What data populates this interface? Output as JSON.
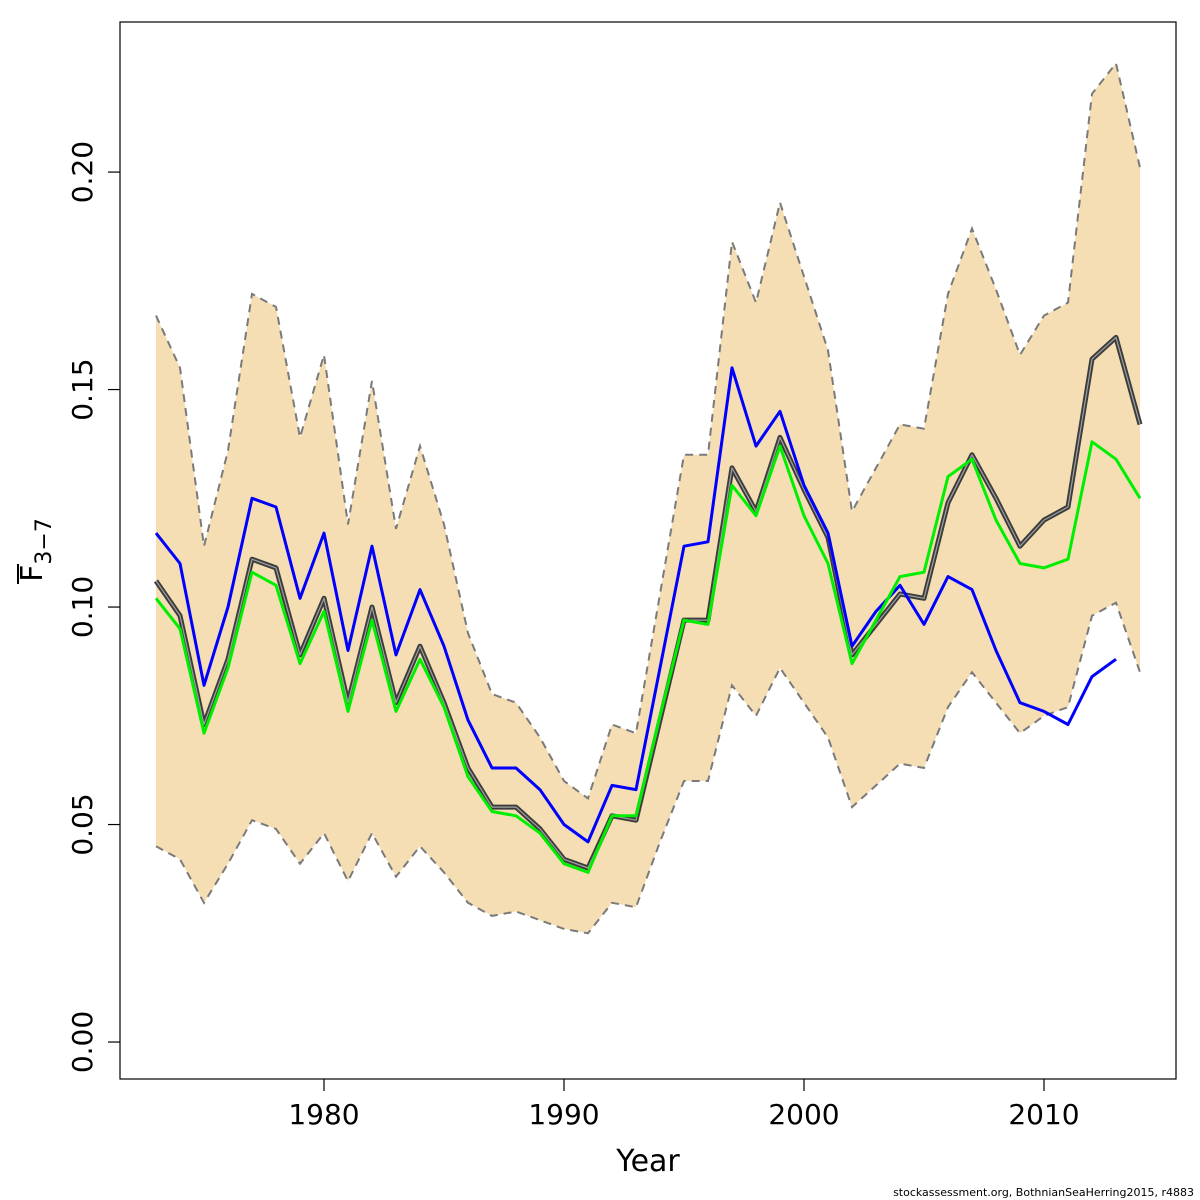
{
  "chart_data": {
    "type": "line",
    "xlabel": "Year",
    "ylabel_main": "F",
    "ylabel_sub": "3−7",
    "caption": "stockassessment.org, BothnianSeaHerring2015, r4883",
    "xlim": [
      1971.5,
      2015.5
    ],
    "ylim": [
      -0.0085,
      0.2345
    ],
    "x_ticks": [
      1980,
      1990,
      2000,
      2010
    ],
    "y_ticks": [
      0.0,
      0.05,
      0.1,
      0.15,
      0.2
    ],
    "y_tick_labels": [
      "0.00",
      "0.05",
      "0.10",
      "0.15",
      "0.20"
    ],
    "colors": {
      "band": "#f5deb3",
      "band_edge": "#7a7a7a",
      "estimate": "#3c3c3c",
      "estimate_highlight": "#a0a0a0",
      "blue_series": "#0000ff",
      "green_series": "#00ee00"
    },
    "x": [
      1973,
      1974,
      1975,
      1976,
      1977,
      1978,
      1979,
      1980,
      1981,
      1982,
      1983,
      1984,
      1985,
      1986,
      1987,
      1988,
      1989,
      1990,
      1991,
      1992,
      1993,
      1994,
      1995,
      1996,
      1997,
      1998,
      1999,
      2000,
      2001,
      2002,
      2003,
      2004,
      2005,
      2006,
      2007,
      2008,
      2009,
      2010,
      2011,
      2012,
      2013,
      2014
    ],
    "confidence_band": {
      "upper": [
        0.167,
        0.155,
        0.114,
        0.136,
        0.172,
        0.169,
        0.139,
        0.158,
        0.119,
        0.152,
        0.118,
        0.137,
        0.119,
        0.094,
        0.08,
        0.078,
        0.07,
        0.06,
        0.056,
        0.073,
        0.071,
        0.103,
        0.135,
        0.135,
        0.184,
        0.17,
        0.193,
        0.176,
        0.159,
        0.122,
        0.132,
        0.142,
        0.141,
        0.172,
        0.187,
        0.173,
        0.158,
        0.167,
        0.17,
        0.218,
        0.225,
        0.201
      ],
      "lower": [
        0.045,
        0.042,
        0.032,
        0.041,
        0.051,
        0.049,
        0.041,
        0.048,
        0.037,
        0.048,
        0.038,
        0.045,
        0.039,
        0.032,
        0.029,
        0.03,
        0.028,
        0.026,
        0.025,
        0.032,
        0.031,
        0.046,
        0.06,
        0.06,
        0.082,
        0.075,
        0.086,
        0.078,
        0.07,
        0.054,
        0.059,
        0.064,
        0.063,
        0.077,
        0.085,
        0.078,
        0.071,
        0.075,
        0.077,
        0.098,
        0.101,
        0.085
      ]
    },
    "series": [
      {
        "values": [
          0.106,
          0.098,
          0.073,
          0.088,
          0.111,
          0.109,
          0.089,
          0.102,
          0.078,
          0.1,
          0.078,
          0.091,
          0.078,
          0.063,
          0.054,
          0.054,
          0.049,
          0.042,
          0.04,
          0.052,
          0.051,
          0.074,
          0.097,
          0.097,
          0.132,
          0.122,
          0.139,
          0.127,
          0.116,
          0.089,
          0.096,
          0.103,
          0.102,
          0.124,
          0.135,
          0.125,
          0.114,
          0.12,
          0.123,
          0.157,
          0.162,
          0.142
        ]
      },
      {
        "values": [
          0.117,
          0.11,
          0.082,
          0.1,
          0.125,
          0.123,
          0.102,
          0.117,
          0.09,
          0.114,
          0.089,
          0.104,
          0.091,
          0.074,
          0.063,
          0.063,
          0.058,
          0.05,
          0.046,
          0.059,
          0.058,
          0.086,
          0.114,
          0.115,
          0.155,
          0.137,
          0.145,
          0.128,
          0.117,
          0.091,
          0.099,
          0.105,
          0.096,
          0.107,
          0.104,
          0.09,
          0.078,
          0.076,
          0.073,
          0.084,
          0.088,
          null
        ]
      },
      {
        "values": [
          0.102,
          0.095,
          0.071,
          0.086,
          0.108,
          0.105,
          0.087,
          0.099,
          0.076,
          0.097,
          0.076,
          0.088,
          0.077,
          0.061,
          0.053,
          0.052,
          0.048,
          0.041,
          0.039,
          0.052,
          0.052,
          0.075,
          0.097,
          0.096,
          0.128,
          0.121,
          0.137,
          0.121,
          0.11,
          0.087,
          0.097,
          0.107,
          0.108,
          0.13,
          0.134,
          0.12,
          0.11,
          0.109,
          0.111,
          0.138,
          0.134,
          0.125
        ]
      }
    ]
  }
}
